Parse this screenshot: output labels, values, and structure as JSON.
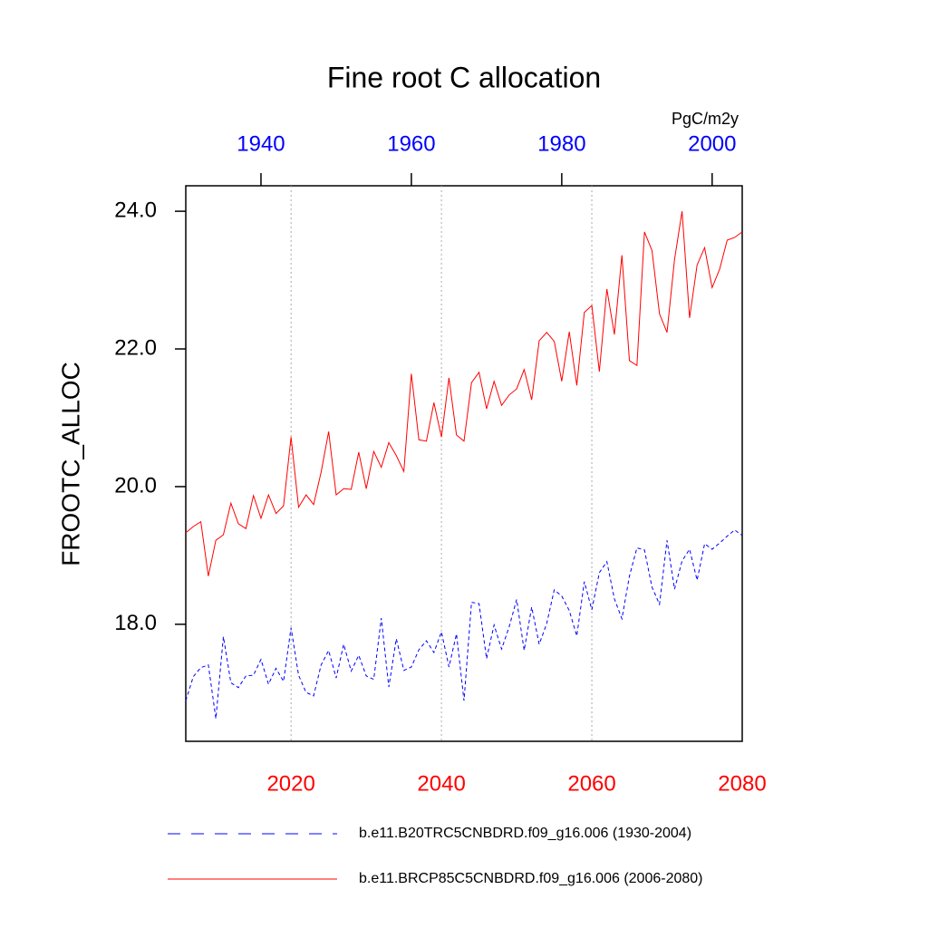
{
  "chart_data": {
    "type": "line",
    "title": "Fine root C allocation",
    "ylabel": "FROOTC_ALLOC",
    "x2label": "PgC/m2y",
    "xlim": [
      2006,
      2080
    ],
    "xticks": [
      2020,
      2040,
      2060,
      2080
    ],
    "xaxis_color": "#ff0000",
    "x2lim": [
      1930,
      2004
    ],
    "x2ticks": [
      1940,
      1960,
      1980,
      2000
    ],
    "x2axis_color": "#0000ff",
    "ylim": [
      16.3,
      24.37
    ],
    "yticks": [
      {
        "value": 18,
        "label": "18.0"
      },
      {
        "value": 20,
        "label": "20.0"
      },
      {
        "value": 22,
        "label": "22.0"
      },
      {
        "value": 24,
        "label": "24.0"
      }
    ],
    "grid": true,
    "series": [
      {
        "name": "b.e11.B20TRC5CNBDRD.f09_g16.006 (1930-2004)",
        "color": "#0000ff",
        "dash": true,
        "axis": "x2",
        "x": [
          1930,
          1931,
          1932,
          1933,
          1934,
          1935,
          1936,
          1937,
          1938,
          1939,
          1940,
          1941,
          1942,
          1943,
          1944,
          1945,
          1946,
          1947,
          1948,
          1949,
          1950,
          1951,
          1952,
          1953,
          1954,
          1955,
          1956,
          1957,
          1958,
          1959,
          1960,
          1961,
          1962,
          1963,
          1964,
          1965,
          1966,
          1967,
          1968,
          1969,
          1970,
          1971,
          1972,
          1973,
          1974,
          1975,
          1976,
          1977,
          1978,
          1979,
          1980,
          1981,
          1982,
          1983,
          1984,
          1985,
          1986,
          1987,
          1988,
          1989,
          1990,
          1991,
          1992,
          1993,
          1994,
          1995,
          1996,
          1997,
          1998,
          1999,
          2000,
          2001,
          2002,
          2003,
          2004
        ],
        "values": [
          16.89,
          17.24,
          17.37,
          17.41,
          16.63,
          17.82,
          17.15,
          17.08,
          17.25,
          17.26,
          17.49,
          17.13,
          17.36,
          17.17,
          17.95,
          17.26,
          17.01,
          16.96,
          17.41,
          17.62,
          17.22,
          17.71,
          17.32,
          17.55,
          17.25,
          17.2,
          18.09,
          17.09,
          17.79,
          17.33,
          17.38,
          17.63,
          17.76,
          17.59,
          17.89,
          17.38,
          17.86,
          16.89,
          18.32,
          18.3,
          17.5,
          17.99,
          17.64,
          17.96,
          18.36,
          17.62,
          18.25,
          17.71,
          18.01,
          18.5,
          18.41,
          18.2,
          17.83,
          18.62,
          18.21,
          18.75,
          18.91,
          18.37,
          18.08,
          18.7,
          19.11,
          19.08,
          18.54,
          18.29,
          19.22,
          18.51,
          18.92,
          19.09,
          18.64,
          19.17,
          19.09,
          19.18,
          19.28,
          19.37,
          19.29
        ]
      },
      {
        "name": "b.e11.BRCP85C5CNBDRD.f09_g16.006 (2006-2080)",
        "color": "#ff0000",
        "dash": false,
        "x": [
          2006,
          2007,
          2008,
          2009,
          2010,
          2011,
          2012,
          2013,
          2014,
          2015,
          2016,
          2017,
          2018,
          2019,
          2020,
          2021,
          2022,
          2023,
          2024,
          2025,
          2026,
          2027,
          2028,
          2029,
          2030,
          2031,
          2032,
          2033,
          2034,
          2035,
          2036,
          2037,
          2038,
          2039,
          2040,
          2041,
          2042,
          2043,
          2044,
          2045,
          2046,
          2047,
          2048,
          2049,
          2050,
          2051,
          2052,
          2053,
          2054,
          2055,
          2056,
          2057,
          2058,
          2059,
          2060,
          2061,
          2062,
          2063,
          2064,
          2065,
          2066,
          2067,
          2068,
          2069,
          2070,
          2071,
          2072,
          2073,
          2074,
          2075,
          2076,
          2077,
          2078,
          2079,
          2080
        ],
        "values": [
          19.33,
          19.42,
          19.49,
          18.7,
          19.22,
          19.3,
          19.76,
          19.46,
          19.39,
          19.87,
          19.54,
          19.88,
          19.61,
          19.72,
          20.72,
          19.7,
          19.88,
          19.74,
          20.21,
          20.8,
          19.88,
          19.97,
          19.96,
          20.5,
          19.97,
          20.51,
          20.28,
          20.64,
          20.45,
          20.22,
          21.64,
          20.68,
          20.66,
          21.22,
          20.72,
          21.58,
          20.75,
          20.66,
          21.51,
          21.66,
          21.13,
          21.53,
          21.18,
          21.33,
          21.42,
          21.7,
          21.26,
          22.12,
          22.24,
          22.11,
          21.53,
          22.25,
          21.47,
          22.53,
          22.63,
          21.67,
          22.87,
          22.21,
          23.36,
          21.83,
          21.76,
          23.7,
          23.43,
          22.51,
          22.24,
          23.3,
          24.0,
          22.45,
          23.22,
          23.47,
          22.89,
          23.16,
          23.58,
          23.62,
          23.7
        ]
      }
    ]
  }
}
